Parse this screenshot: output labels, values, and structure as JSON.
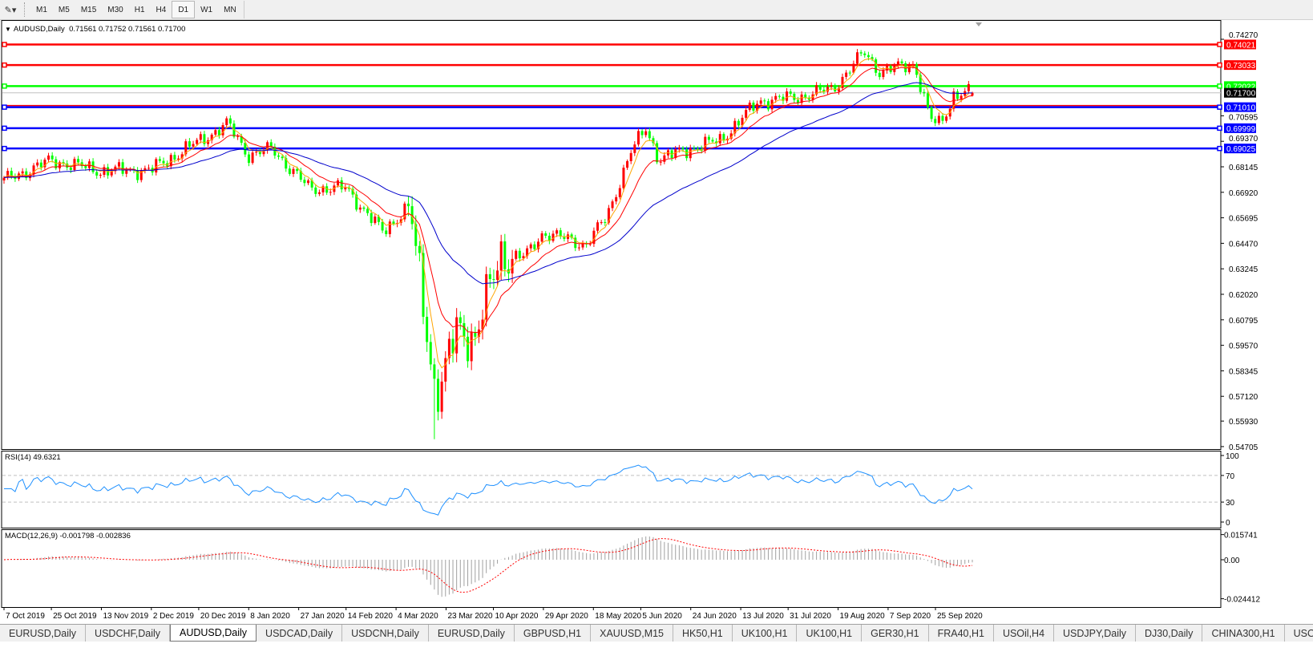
{
  "toolbar": {
    "draw_tool_icon": "line-tools-icon",
    "timeframes": [
      "M1",
      "M5",
      "M15",
      "M30",
      "H1",
      "H4",
      "D1",
      "W1",
      "MN"
    ],
    "active_timeframe": "D1"
  },
  "chart_header": {
    "symbol": "AUDUSD,Daily",
    "ohlc": "0.71561 0.71752 0.71561 0.71700"
  },
  "rsi_label": "RSI(14) 49.6321",
  "macd_label": "MACD(12,26,9) -0.001798 -0.002836",
  "tabs": [
    "EURUSD,Daily",
    "USDCHF,Daily",
    "AUDUSD,Daily",
    "USDCAD,Daily",
    "USDCNH,Daily",
    "EURUSD,Daily",
    "GBPUSD,H1",
    "XAUUSD,M15",
    "HK50,H1",
    "UK100,H1",
    "UK100,H1",
    "GER30,H1",
    "FRA40,H1",
    "USOil,H4",
    "USDJPY,Daily",
    "DJ30,Daily",
    "CHINA300,H1",
    "USOil,H"
  ],
  "active_tab": 2,
  "colors": {
    "up": "#ff0000",
    "down": "#00ff00",
    "ma_fast": "#ffa500",
    "ma_mid": "#ff0000",
    "ma_slow": "#0000cc",
    "rsi": "#1e90ff",
    "macd_hist": "#a0a0a0",
    "macd_signal": "#ff0000"
  },
  "chart_data": {
    "type": "candlestick",
    "symbol": "AUDUSD",
    "timeframe": "Daily",
    "last_bar": {
      "open": 0.71561,
      "high": 0.71752,
      "low": 0.71561,
      "close": 0.717
    },
    "price_axis": {
      "min": 0.54705,
      "max": 0.7427,
      "ticks": [
        "0.74270",
        "0.70595",
        "0.69370",
        "0.68145",
        "0.66920",
        "0.65695",
        "0.64470",
        "0.63245",
        "0.62020",
        "0.60795",
        "0.59570",
        "0.58345",
        "0.57120",
        "0.55930",
        "0.54705"
      ]
    },
    "date_axis": [
      "7 Oct 2019",
      "25 Oct 2019",
      "13 Nov 2019",
      "2 Dec 2019",
      "20 Dec 2019",
      "8 Jan 2020",
      "27 Jan 2020",
      "14 Feb 2020",
      "4 Mar 2020",
      "23 Mar 2020",
      "10 Apr 2020",
      "29 Apr 2020",
      "18 May 2020",
      "5 Jun 2020",
      "24 Jun 2020",
      "13 Jul 2020",
      "31 Jul 2020",
      "19 Aug 2020",
      "7 Sep 2020",
      "25 Sep 2020"
    ],
    "close_path": [
      [
        "2019-10-07",
        0.6749
      ],
      [
        "2019-10-25",
        0.6845
      ],
      [
        "2019-11-13",
        0.6795
      ],
      [
        "2019-12-02",
        0.68
      ],
      [
        "2019-12-31",
        0.702
      ],
      [
        "2020-01-08",
        0.687
      ],
      [
        "2020-01-17",
        0.69
      ],
      [
        "2020-01-31",
        0.671
      ],
      [
        "2020-02-14",
        0.6712
      ],
      [
        "2020-02-28",
        0.6499
      ],
      [
        "2020-03-09",
        0.663
      ],
      [
        "2020-03-13",
        0.627
      ],
      [
        "2020-03-19",
        0.573
      ],
      [
        "2020-03-22",
        0.58
      ],
      [
        "2020-03-27",
        0.603
      ],
      [
        "2020-04-03",
        0.6
      ],
      [
        "2020-04-13",
        0.64
      ],
      [
        "2020-04-22",
        0.638
      ],
      [
        "2020-04-29",
        0.65
      ],
      [
        "2020-05-15",
        0.644
      ],
      [
        "2020-05-23",
        0.657
      ],
      [
        "2020-06-01",
        0.688
      ],
      [
        "2020-06-07",
        0.7
      ],
      [
        "2020-06-12",
        0.685
      ],
      [
        "2020-06-23",
        0.69
      ],
      [
        "2020-07-05",
        0.694
      ],
      [
        "2020-07-20",
        0.713
      ],
      [
        "2020-08-04",
        0.715
      ],
      [
        "2020-08-17",
        0.719
      ],
      [
        "2020-08-29",
        0.7365
      ],
      [
        "2020-09-04",
        0.727
      ],
      [
        "2020-09-17",
        0.731
      ],
      [
        "2020-09-23",
        0.704
      ],
      [
        "2020-09-27",
        0.702
      ],
      [
        "2020-10-02",
        0.716
      ],
      [
        "2020-10-09",
        0.717
      ]
    ],
    "period_low": {
      "date": "2020-03-19",
      "price": 0.5506
    },
    "horizontal_levels": [
      {
        "price": "0.74021",
        "color": "#ff0000"
      },
      {
        "price": "0.73033",
        "color": "#ff0000"
      },
      {
        "price": "0.72022",
        "color": "#00ff00"
      },
      {
        "price": "0.71010",
        "color": "#0000ff"
      },
      {
        "price": "0.69999",
        "color": "#0000ff"
      },
      {
        "price": "0.69025",
        "color": "#0000ff"
      }
    ],
    "current_price": "0.71700",
    "moving_averages": [
      {
        "period": 5
      },
      {
        "period": 13
      },
      {
        "period": 40
      }
    ],
    "rsi": {
      "period": 14,
      "levels": [
        70,
        30
      ],
      "axis": [
        "100",
        "70",
        "30",
        "0"
      ]
    },
    "macd": {
      "fast": 12,
      "slow": 26,
      "signal": 9,
      "axis": [
        "0.015741",
        "0.00",
        "-0.024412"
      ]
    }
  }
}
